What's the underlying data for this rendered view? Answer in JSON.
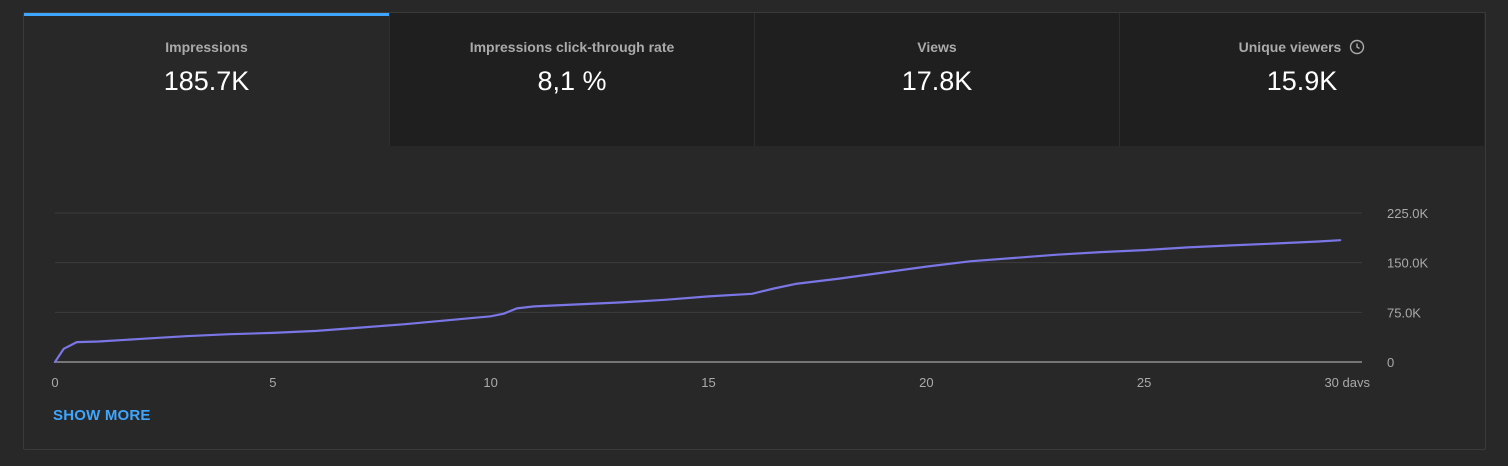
{
  "tabs": [
    {
      "label": "Impressions",
      "value": "185.7K"
    },
    {
      "label": "Impressions click-through rate",
      "value": "8,1 %"
    },
    {
      "label": "Views",
      "value": "17.8K"
    },
    {
      "label": "Unique viewers",
      "value": "15.9K",
      "icon": "clock-icon"
    }
  ],
  "active_tab": 0,
  "show_more_label": "SHOW MORE",
  "colors": {
    "accent": "#3ea6ff",
    "line": "#7b76e6",
    "background": "#282828"
  },
  "chart_data": {
    "type": "line",
    "y_tick_labels": [
      "0",
      "75.0K",
      "150.0K",
      "225.0K"
    ],
    "y_ticks": [
      0,
      75000,
      150000,
      225000
    ],
    "x_tick_labels": [
      "0",
      "5",
      "10",
      "15",
      "20",
      "25",
      "30 days"
    ],
    "x_ticks": [
      0,
      5,
      10,
      15,
      20,
      25,
      30
    ],
    "xlim": [
      0,
      30
    ],
    "ylim": [
      0,
      225000
    ],
    "grid": true,
    "series": [
      {
        "x": [
          0,
          0.2,
          0.5,
          1,
          2,
          3,
          4,
          5,
          6,
          7,
          8,
          9,
          10,
          10.3,
          10.6,
          11,
          12,
          13,
          14,
          15,
          16,
          16.5,
          17,
          18,
          19,
          20,
          21,
          22,
          23,
          24,
          25,
          26,
          27,
          28,
          29,
          29.5
        ],
        "y": [
          0,
          20000,
          30000,
          31000,
          35000,
          39000,
          42000,
          44000,
          47000,
          52000,
          57000,
          63000,
          69000,
          73000,
          81000,
          84000,
          87000,
          90000,
          94000,
          99000,
          103000,
          111000,
          118000,
          126000,
          135000,
          144000,
          152000,
          157000,
          162000,
          166000,
          169000,
          173000,
          176000,
          179000,
          182000,
          184000
        ]
      }
    ]
  }
}
